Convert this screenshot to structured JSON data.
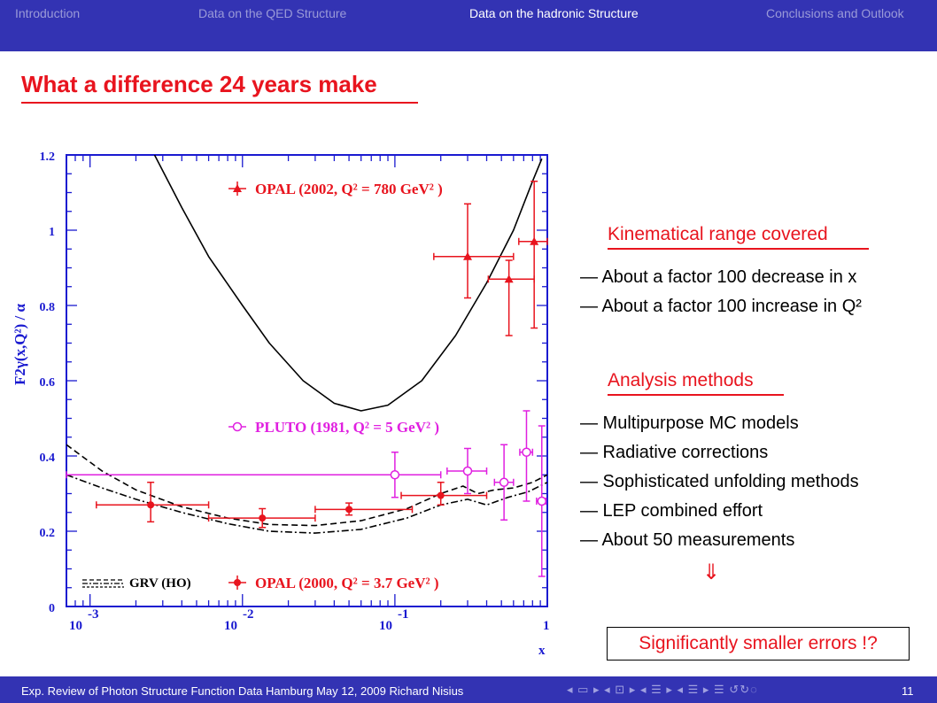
{
  "nav": {
    "items": [
      {
        "label": "Introduction",
        "active": false
      },
      {
        "label": "Data on the QED Structure",
        "active": false
      },
      {
        "label": "Data on the hadronic Structure",
        "active": true
      },
      {
        "label": "Conclusions and Outlook",
        "active": false
      }
    ]
  },
  "slide": {
    "title": "What a difference 24 years make"
  },
  "chart_data": {
    "type": "scatter",
    "xscale": "log",
    "xlim": [
      0.0007,
      1
    ],
    "ylim": [
      0,
      1.2
    ],
    "ylabel": "F2γ(x,Q²) / α",
    "xlabel": "x",
    "yticks": [
      "0",
      "0.2",
      "0.4",
      "0.6",
      "0.8",
      "1",
      "1.2"
    ],
    "xticks": [
      {
        "base": "10",
        "exp": "-3"
      },
      {
        "base": "10",
        "exp": "-2"
      },
      {
        "base": "10",
        "exp": "-1"
      },
      {
        "base": "1",
        "exp": ""
      }
    ],
    "legend": {
      "opal2002": "OPAL (2002, Q² = 780 GeV² )",
      "pluto": "PLUTO (1981, Q² = 5 GeV² )",
      "grv": "GRV (HO)",
      "opal2000": "OPAL (2000, Q² = 3.7 GeV² )"
    },
    "series": [
      {
        "name": "OPAL (2002, Q² = 780 GeV² )",
        "color": "#e8141e",
        "marker": "triangle",
        "points": [
          {
            "x": 0.3,
            "y": 0.93,
            "xlo": 0.18,
            "xhi": 0.6,
            "ylo": 0.82,
            "yhi": 1.07
          },
          {
            "x": 0.56,
            "y": 0.87,
            "xlo": 0.41,
            "xhi": 0.82,
            "ylo": 0.72,
            "yhi": 0.92
          },
          {
            "x": 0.82,
            "y": 0.97,
            "xlo": 0.65,
            "xhi": 1.0,
            "ylo": 0.74,
            "yhi": 1.13
          }
        ]
      },
      {
        "name": "PLUTO (1981, Q² = 5 GeV² )",
        "color": "#e020e0",
        "marker": "open-circle",
        "points": [
          {
            "x": 0.1,
            "y": 0.35,
            "xlo": 0.0007,
            "xhi": 0.2,
            "ylo": 0.29,
            "yhi": 0.41
          },
          {
            "x": 0.3,
            "y": 0.36,
            "xlo": 0.22,
            "xhi": 0.4,
            "ylo": 0.3,
            "yhi": 0.42
          },
          {
            "x": 0.52,
            "y": 0.33,
            "xlo": 0.45,
            "xhi": 0.6,
            "ylo": 0.23,
            "yhi": 0.43
          },
          {
            "x": 0.73,
            "y": 0.41,
            "xlo": 0.66,
            "xhi": 0.8,
            "ylo": 0.28,
            "yhi": 0.52
          },
          {
            "x": 0.92,
            "y": 0.28,
            "xlo": 0.85,
            "xhi": 0.98,
            "ylo": 0.08,
            "yhi": 0.48
          }
        ]
      },
      {
        "name": "OPAL (2000, Q² = 3.7 GeV² )",
        "color": "#e8141e",
        "marker": "filled-circle",
        "points": [
          {
            "x": 0.0025,
            "y": 0.27,
            "xlo": 0.0011,
            "xhi": 0.006,
            "ylo": 0.225,
            "yhi": 0.33
          },
          {
            "x": 0.0135,
            "y": 0.235,
            "xlo": 0.006,
            "xhi": 0.03,
            "ylo": 0.21,
            "yhi": 0.26
          },
          {
            "x": 0.05,
            "y": 0.258,
            "xlo": 0.03,
            "xhi": 0.13,
            "ylo": 0.243,
            "yhi": 0.275
          },
          {
            "x": 0.2,
            "y": 0.295,
            "xlo": 0.11,
            "xhi": 0.4,
            "ylo": 0.27,
            "yhi": 0.33
          }
        ]
      },
      {
        "name": "GRV (HO)",
        "color": "#000000",
        "style": "dashed",
        "points": [
          {
            "x": 0.0007,
            "y": 0.43
          },
          {
            "x": 0.0012,
            "y": 0.36
          },
          {
            "x": 0.002,
            "y": 0.31
          },
          {
            "x": 0.004,
            "y": 0.265
          },
          {
            "x": 0.008,
            "y": 0.235
          },
          {
            "x": 0.015,
            "y": 0.218
          },
          {
            "x": 0.03,
            "y": 0.215
          },
          {
            "x": 0.06,
            "y": 0.228
          },
          {
            "x": 0.12,
            "y": 0.26
          },
          {
            "x": 0.2,
            "y": 0.3
          },
          {
            "x": 0.28,
            "y": 0.32
          },
          {
            "x": 0.35,
            "y": 0.3
          },
          {
            "x": 0.45,
            "y": 0.31
          },
          {
            "x": 0.6,
            "y": 0.315
          },
          {
            "x": 0.8,
            "y": 0.33
          },
          {
            "x": 1.0,
            "y": 0.35
          }
        ]
      },
      {
        "name": "GRV (HO)",
        "color": "#000000",
        "style": "dashdot",
        "points": [
          {
            "x": 0.0007,
            "y": 0.35
          },
          {
            "x": 0.0012,
            "y": 0.315
          },
          {
            "x": 0.002,
            "y": 0.285
          },
          {
            "x": 0.004,
            "y": 0.25
          },
          {
            "x": 0.008,
            "y": 0.22
          },
          {
            "x": 0.015,
            "y": 0.2
          },
          {
            "x": 0.03,
            "y": 0.195
          },
          {
            "x": 0.06,
            "y": 0.205
          },
          {
            "x": 0.12,
            "y": 0.235
          },
          {
            "x": 0.2,
            "y": 0.27
          },
          {
            "x": 0.3,
            "y": 0.285
          },
          {
            "x": 0.4,
            "y": 0.27
          },
          {
            "x": 0.55,
            "y": 0.29
          },
          {
            "x": 0.75,
            "y": 0.305
          },
          {
            "x": 1.0,
            "y": 0.33
          }
        ]
      },
      {
        "name": "OPAL (2002, Q² = 780 GeV² )",
        "color": "#000000",
        "style": "solid",
        "points": [
          {
            "x": 0.00265,
            "y": 1.2
          },
          {
            "x": 0.004,
            "y": 1.06
          },
          {
            "x": 0.006,
            "y": 0.93
          },
          {
            "x": 0.01,
            "y": 0.8
          },
          {
            "x": 0.015,
            "y": 0.7
          },
          {
            "x": 0.025,
            "y": 0.6
          },
          {
            "x": 0.04,
            "y": 0.54
          },
          {
            "x": 0.06,
            "y": 0.52
          },
          {
            "x": 0.09,
            "y": 0.535
          },
          {
            "x": 0.15,
            "y": 0.6
          },
          {
            "x": 0.25,
            "y": 0.72
          },
          {
            "x": 0.4,
            "y": 0.86
          },
          {
            "x": 0.6,
            "y": 1.0
          },
          {
            "x": 0.8,
            "y": 1.13
          },
          {
            "x": 0.92,
            "y": 1.19
          }
        ]
      }
    ]
  },
  "kinematical": {
    "heading": "Kinematical range covered",
    "bullets": [
      "— About a factor 100 decrease in x",
      "— About a factor 100 increase in Q²"
    ]
  },
  "analysis": {
    "heading": "Analysis methods",
    "bullets": [
      "— Multipurpose MC models",
      "— Radiative corrections",
      "— Sophisticated unfolding methods",
      "— LEP combined effort",
      "— About 50 measurements"
    ],
    "arrow": "⇓",
    "callout": "Significantly smaller errors !?"
  },
  "footer": {
    "text": "Exp. Review of Photon Structure Function Data  Hamburg  May 12, 2009  Richard Nisius",
    "nav_symbols": "◂ ▭ ▸ ◂ ⊡ ▸ ◂ ☰ ▸ ◂ ☰ ▸  ☰  ↺↻◌",
    "page": "11"
  }
}
